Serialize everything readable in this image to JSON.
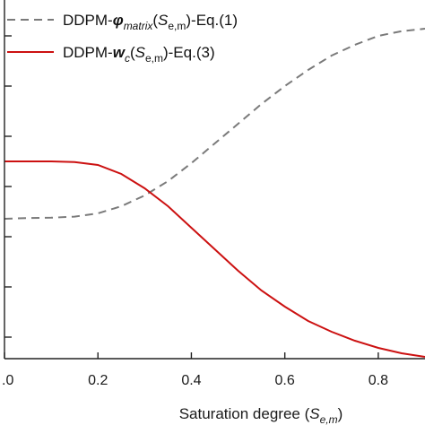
{
  "chart_data": {
    "type": "line",
    "xlabel": {
      "prefix": "Saturation degree (",
      "symbol": "S",
      "subscript": "e,m",
      "suffix": ")"
    },
    "xlim": [
      0.0,
      0.9
    ],
    "ylim": [
      0,
      1
    ],
    "x_ticks": [
      0.0,
      0.2,
      0.4,
      0.6,
      0.8
    ],
    "x_tick_labels": [
      ".0",
      "0.2",
      "0.4",
      "0.6",
      "0.8"
    ],
    "y_ticks": [
      0.06,
      0.2,
      0.34,
      0.48,
      0.62,
      0.76,
      0.9
    ],
    "y_tick_labels": [],
    "grid": false,
    "legend_position": "top-left",
    "series": [
      {
        "name": "DDPM-φmatrix(Se,m)-Eq.(1)",
        "legend": {
          "prefix": "DDPM-",
          "symbol": "φ",
          "symbol_sub": "matrix",
          "mid": "(",
          "var": "S",
          "var_sub": "e,m",
          "suffix": ")-Eq.(1)"
        },
        "color": "#7a7a7a",
        "style": "dashed",
        "x": [
          0.0,
          0.05,
          0.1,
          0.15,
          0.2,
          0.25,
          0.3,
          0.35,
          0.4,
          0.45,
          0.5,
          0.55,
          0.6,
          0.65,
          0.7,
          0.75,
          0.8,
          0.85,
          0.9
        ],
        "y": [
          0.39,
          0.392,
          0.393,
          0.396,
          0.405,
          0.425,
          0.455,
          0.495,
          0.545,
          0.6,
          0.655,
          0.71,
          0.76,
          0.805,
          0.845,
          0.875,
          0.9,
          0.913,
          0.92
        ]
      },
      {
        "name": "DDPM-wc(Se,m)-Eq.(3)",
        "legend": {
          "prefix": "DDPM-",
          "symbol": "w",
          "symbol_sub": "c",
          "mid": "(",
          "var": "S",
          "var_sub": "e,m",
          "suffix": ")-Eq.(3)"
        },
        "color": "#cc1111",
        "style": "solid",
        "x": [
          0.0,
          0.05,
          0.1,
          0.15,
          0.2,
          0.25,
          0.3,
          0.35,
          0.4,
          0.45,
          0.5,
          0.55,
          0.6,
          0.65,
          0.7,
          0.75,
          0.8,
          0.85,
          0.9
        ],
        "y": [
          0.55,
          0.55,
          0.55,
          0.548,
          0.54,
          0.515,
          0.475,
          0.425,
          0.365,
          0.305,
          0.245,
          0.19,
          0.145,
          0.105,
          0.075,
          0.05,
          0.03,
          0.015,
          0.005
        ]
      }
    ]
  }
}
